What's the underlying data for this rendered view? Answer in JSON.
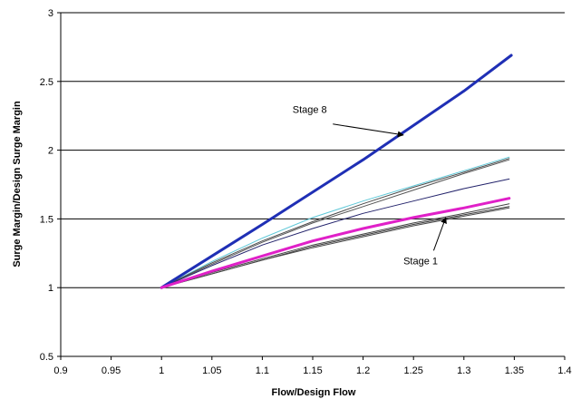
{
  "chart_data": {
    "type": "line",
    "title": "",
    "xlabel": "Flow/Design Flow",
    "ylabel": "Surge Margin/Design Surge Margin",
    "xlim": [
      0.9,
      1.4
    ],
    "ylim": [
      0.5,
      3
    ],
    "xticks": [
      "0.9",
      "0.95",
      "1",
      "1.05",
      "1.1",
      "1.15",
      "1.2",
      "1.25",
      "1.3",
      "1.35",
      "1.4"
    ],
    "yticks": [
      "0.5",
      "1",
      "1.5",
      "2",
      "2.5",
      "3"
    ],
    "grid": "horizontal",
    "legend": "none",
    "series": [
      {
        "color": "#1f2fb5",
        "x": [
          1.0,
          1.1,
          1.2,
          1.3,
          1.347
        ],
        "y": [
          1.0,
          1.46,
          1.93,
          2.43,
          2.69
        ]
      },
      {
        "color": "#5ec8d8",
        "x": [
          1.0,
          1.05,
          1.1,
          1.15,
          1.2,
          1.25,
          1.3,
          1.345
        ],
        "y": [
          1.0,
          1.19,
          1.36,
          1.51,
          1.63,
          1.74,
          1.85,
          1.95
        ]
      },
      {
        "color": "#4a4a4a",
        "x": [
          1.0,
          1.05,
          1.1,
          1.15,
          1.2,
          1.25,
          1.3,
          1.345
        ],
        "y": [
          1.0,
          1.18,
          1.34,
          1.48,
          1.61,
          1.73,
          1.84,
          1.94
        ]
      },
      {
        "color": "#555555",
        "x": [
          1.0,
          1.05,
          1.1,
          1.15,
          1.2,
          1.25,
          1.3,
          1.345
        ],
        "y": [
          1.0,
          1.17,
          1.33,
          1.47,
          1.59,
          1.71,
          1.83,
          1.93
        ]
      },
      {
        "color": "#23236b",
        "x": [
          1.0,
          1.05,
          1.1,
          1.15,
          1.2,
          1.25,
          1.3,
          1.345
        ],
        "y": [
          1.0,
          1.16,
          1.31,
          1.43,
          1.54,
          1.63,
          1.72,
          1.79
        ]
      },
      {
        "color": "#e020c8",
        "x": [
          1.0,
          1.05,
          1.1,
          1.15,
          1.2,
          1.25,
          1.3,
          1.345
        ],
        "y": [
          1.0,
          1.12,
          1.23,
          1.34,
          1.43,
          1.51,
          1.58,
          1.65
        ]
      },
      {
        "color": "#444444",
        "x": [
          1.0,
          1.05,
          1.1,
          1.15,
          1.2,
          1.25,
          1.3,
          1.345
        ],
        "y": [
          1.0,
          1.11,
          1.21,
          1.31,
          1.39,
          1.47,
          1.54,
          1.61
        ]
      },
      {
        "color": "#3a3a3a",
        "x": [
          1.0,
          1.05,
          1.1,
          1.15,
          1.2,
          1.25,
          1.3,
          1.345
        ],
        "y": [
          1.0,
          1.1,
          1.2,
          1.3,
          1.38,
          1.46,
          1.53,
          1.59
        ]
      },
      {
        "color": "#4a4a4a",
        "x": [
          1.0,
          1.05,
          1.1,
          1.15,
          1.2,
          1.25,
          1.3,
          1.345
        ],
        "y": [
          1.0,
          1.1,
          1.2,
          1.29,
          1.37,
          1.45,
          1.52,
          1.58
        ]
      }
    ],
    "annotations": [
      {
        "text": "Stage 8",
        "text_at": [
          1.13,
          2.27
        ],
        "arrow_from": [
          1.17,
          2.19
        ],
        "arrow_to": [
          1.24,
          2.11
        ]
      },
      {
        "text": "Stage 1",
        "text_at": [
          1.24,
          1.17
        ],
        "arrow_from": [
          1.27,
          1.27
        ],
        "arrow_to": [
          1.282,
          1.51
        ]
      }
    ]
  }
}
